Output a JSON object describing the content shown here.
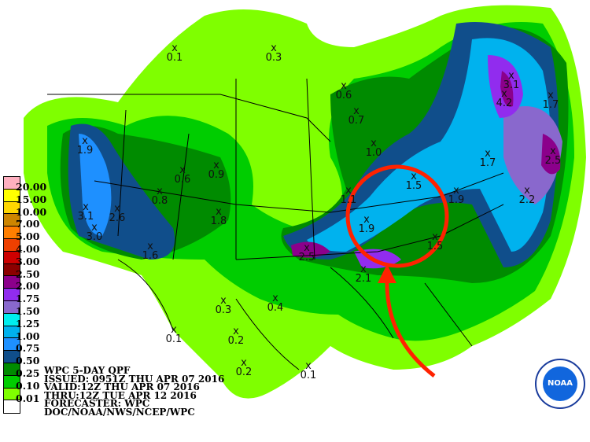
{
  "legend": {
    "values": [
      "20.00",
      "15.00",
      "10.00",
      "7.00",
      "5.00",
      "4.00",
      "3.00",
      "2.50",
      "2.00",
      "1.75",
      "1.50",
      "1.25",
      "1.00",
      "0.75",
      "0.50",
      "0.25",
      "0.10",
      "0.01"
    ],
    "colors": [
      "#ffb0c0",
      "#ffff00",
      "#ffd700",
      "#cd8500",
      "#ff7f00",
      "#ee4000",
      "#cd0000",
      "#8b0000",
      "#8b008b",
      "#912cee",
      "#8968cd",
      "#00eeee",
      "#00b2ee",
      "#1e90ff",
      "#104e8b",
      "#008b00",
      "#00cd00",
      "#7fff00",
      "#ffffff"
    ]
  },
  "info": [
    "WPC 5-DAY QPF",
    "ISSUED: 0951Z THU APR 07 2016",
    "VALID:12Z THU APR 07 2016",
    "THRU:12Z TUE APR 12 2016",
    "FORECASTER: WPC",
    "DOC/NOAA/NWS/NCEP/WPC"
  ],
  "point_maxima": [
    "0.1",
    "0.3",
    "0.6",
    "0.7",
    "1.0",
    "3.1",
    "4.2",
    "1.7",
    "2.5",
    "1.7",
    "2.2",
    "1.5",
    "1.9",
    "1.1",
    "1.9",
    "2.5",
    "2.1",
    "1.5",
    "1.9",
    "3.1",
    "2.6",
    "3.0",
    "0.6",
    "0.9",
    "0.8",
    "1.8",
    "1.6",
    "0.3",
    "0.4",
    "0.1",
    "0.2",
    "0.2",
    "0.1"
  ],
  "logo": "NOAA",
  "annotation": {
    "color": "#ff2200",
    "shape": "circle-with-arrow"
  }
}
